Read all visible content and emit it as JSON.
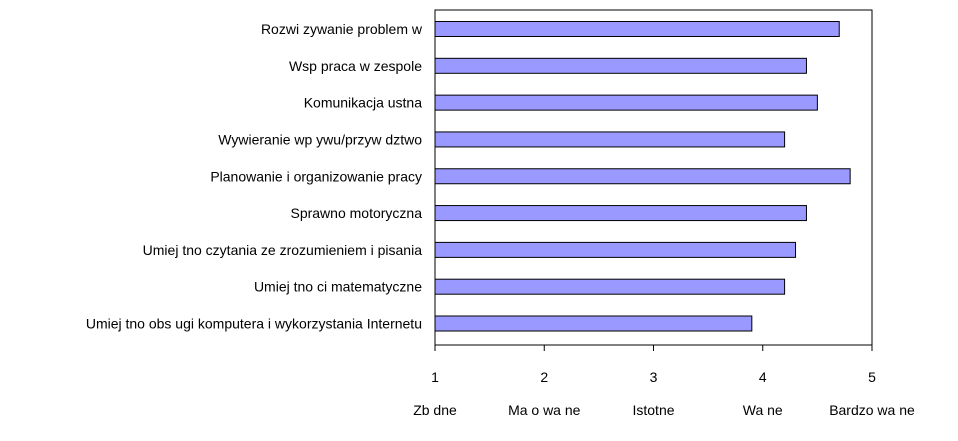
{
  "chart_data": {
    "type": "bar",
    "orientation": "horizontal",
    "title": "",
    "xlabel": "",
    "ylabel": "",
    "categories": [
      "Rozwi zywanie problem w",
      "Wsp praca w zespole",
      "Komunikacja ustna",
      "Wywieranie wp ywu/przyw dztwo",
      "Planowanie i organizowanie pracy",
      "Sprawno motoryczna",
      "Umiej tno czytania ze zrozumieniem i pisania",
      "Umiej tno ci matematyczne",
      "Umiej tno obs ugi komputera i wykorzystania Internetu"
    ],
    "values": [
      4.7,
      4.4,
      4.5,
      4.2,
      4.8,
      4.4,
      4.3,
      4.2,
      3.9
    ],
    "xlim": [
      1,
      5
    ],
    "xticks": [
      1,
      2,
      3,
      4,
      5
    ],
    "xtick_labels": [
      "1",
      "2",
      "3",
      "4",
      "5"
    ],
    "scale_labels": [
      "Zb dne",
      "Ma o wa ne",
      "Istotne",
      "Wa ne",
      "Bardzo wa ne"
    ],
    "bar_color": "#9999ff",
    "bar_edge_color": "#000000",
    "grid": false,
    "legend": "none"
  }
}
